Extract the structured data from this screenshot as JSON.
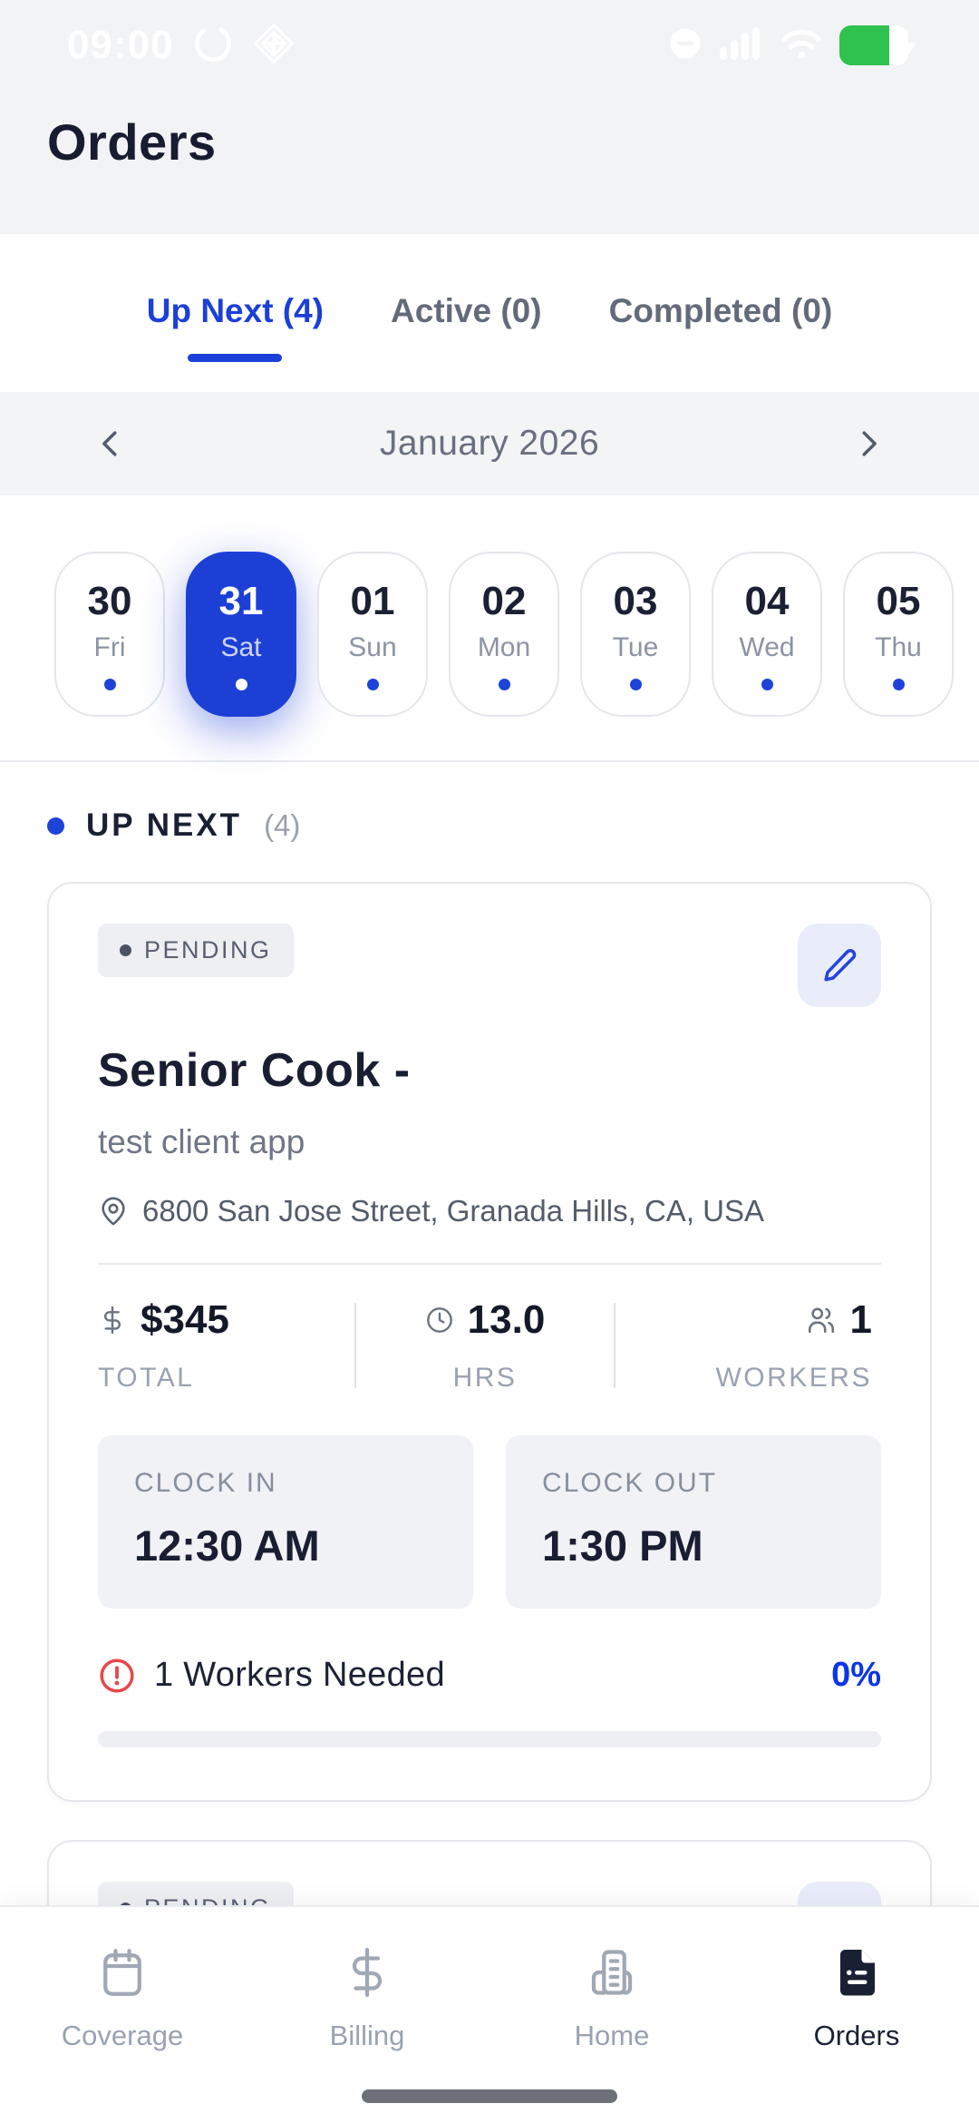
{
  "status_bar": {
    "time": "09:00"
  },
  "header": {
    "title": "Orders"
  },
  "tabs": [
    {
      "label": "Up Next (4)",
      "active": true
    },
    {
      "label": "Active (0)",
      "active": false
    },
    {
      "label": "Completed (0)",
      "active": false
    }
  ],
  "calendar": {
    "month": "January 2026",
    "days": [
      {
        "date": "30",
        "day": "Fri",
        "selected": false
      },
      {
        "date": "31",
        "day": "Sat",
        "selected": true
      },
      {
        "date": "01",
        "day": "Sun",
        "selected": false
      },
      {
        "date": "02",
        "day": "Mon",
        "selected": false
      },
      {
        "date": "03",
        "day": "Tue",
        "selected": false
      },
      {
        "date": "04",
        "day": "Wed",
        "selected": false
      },
      {
        "date": "05",
        "day": "Thu",
        "selected": false
      }
    ]
  },
  "section": {
    "title": "UP NEXT",
    "count": "(4)"
  },
  "orders": [
    {
      "status": "PENDING",
      "title": "Senior Cook -",
      "client": "test client app",
      "address": "6800 San Jose Street, Granada Hills, CA, USA",
      "stats": [
        {
          "icon": "dollar-icon",
          "value": "$345",
          "label": "TOTAL"
        },
        {
          "icon": "clock-icon",
          "value": "13.0",
          "label": "HRS"
        },
        {
          "icon": "workers-icon",
          "value": "1",
          "label": "WORKERS"
        }
      ],
      "clock_in_label": "CLOCK IN",
      "clock_in": "12:30 AM",
      "clock_out_label": "CLOCK OUT",
      "clock_out": "1:30 PM",
      "workers_needed": "1 Workers Needed",
      "fill_percent_label": "0%",
      "fill_percent": 0
    },
    {
      "status": "PENDING"
    }
  ],
  "nav": [
    {
      "label": "Coverage",
      "icon": "calendar-icon",
      "active": false
    },
    {
      "label": "Billing",
      "icon": "dollar-icon",
      "active": false
    },
    {
      "label": "Home",
      "icon": "building-icon",
      "active": false
    },
    {
      "label": "Orders",
      "icon": "document-icon",
      "active": true
    }
  ],
  "colors": {
    "accent_blue": "#1c40d6",
    "percent_blue": "#0c35e6",
    "alert_red": "#e8474b",
    "battery_green": "#2fc24f",
    "dark_text": "#191e32",
    "gray_text": "#6f7785",
    "top_bar_bg": "#f2f3f5"
  }
}
